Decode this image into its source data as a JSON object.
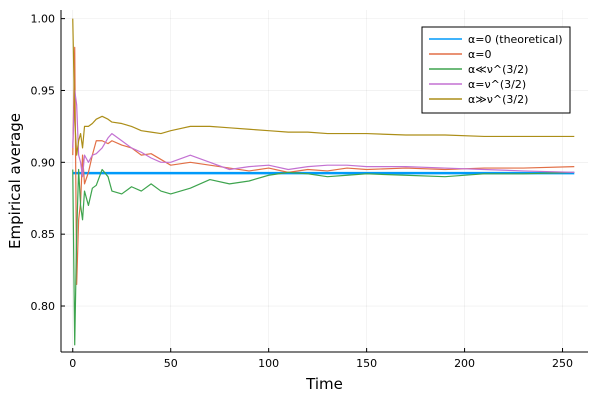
{
  "chart_data": {
    "type": "line",
    "title": "",
    "xlabel": "Time",
    "ylabel": "Empirical average",
    "xlim": [
      -6,
      263
    ],
    "ylim": [
      0.768,
      1.006
    ],
    "x_ticks": [
      0,
      50,
      100,
      150,
      200,
      250
    ],
    "x_tick_labels": [
      "0",
      "50",
      "100",
      "150",
      "200",
      "250"
    ],
    "y_ticks": [
      0.8,
      0.85,
      0.9,
      0.95,
      1.0
    ],
    "y_tick_labels": [
      "0.80",
      "0.85",
      "0.90",
      "0.95",
      "1.00"
    ],
    "grid": true,
    "legend_position": "top-right",
    "series": [
      {
        "name": "α=0 (theoretical)",
        "color": "#009AFA",
        "line_width": 2.5,
        "x": [
          0,
          256
        ],
        "y": [
          0.8925,
          0.8925
        ]
      },
      {
        "name": "α=0",
        "color": "#E26F46",
        "x": [
          0,
          1,
          2,
          3,
          4,
          5,
          6,
          8,
          10,
          12,
          15,
          18,
          20,
          25,
          30,
          35,
          40,
          45,
          50,
          60,
          70,
          80,
          90,
          100,
          110,
          120,
          130,
          140,
          150,
          170,
          190,
          210,
          230,
          256
        ],
        "y": [
          0.905,
          0.98,
          0.815,
          0.86,
          0.872,
          0.905,
          0.885,
          0.893,
          0.905,
          0.915,
          0.915,
          0.913,
          0.915,
          0.912,
          0.91,
          0.905,
          0.906,
          0.902,
          0.898,
          0.9,
          0.898,
          0.896,
          0.894,
          0.896,
          0.893,
          0.895,
          0.894,
          0.896,
          0.895,
          0.896,
          0.895,
          0.896,
          0.896,
          0.897
        ]
      },
      {
        "name": "α≪ν^(3/2)",
        "color": "#3EA44E",
        "x": [
          0,
          1,
          2,
          3,
          4,
          5,
          6,
          8,
          10,
          12,
          15,
          18,
          20,
          25,
          30,
          35,
          40,
          45,
          50,
          60,
          70,
          80,
          90,
          100,
          110,
          120,
          130,
          140,
          150,
          170,
          190,
          210,
          230,
          256
        ],
        "y": [
          0.895,
          0.773,
          0.85,
          0.895,
          0.87,
          0.86,
          0.88,
          0.87,
          0.882,
          0.884,
          0.895,
          0.89,
          0.88,
          0.878,
          0.883,
          0.88,
          0.885,
          0.88,
          0.878,
          0.882,
          0.888,
          0.885,
          0.887,
          0.891,
          0.893,
          0.892,
          0.89,
          0.891,
          0.892,
          0.891,
          0.89,
          0.892,
          0.892,
          0.893
        ]
      },
      {
        "name": "α=ν^(3/2)",
        "color": "#C371D2",
        "x": [
          0,
          1,
          2,
          3,
          4,
          5,
          6,
          8,
          10,
          12,
          15,
          18,
          20,
          25,
          30,
          35,
          40,
          45,
          50,
          60,
          70,
          80,
          90,
          100,
          110,
          120,
          130,
          140,
          150,
          170,
          190,
          210,
          230,
          256
        ],
        "y": [
          0.91,
          0.95,
          0.94,
          0.905,
          0.9,
          0.89,
          0.905,
          0.9,
          0.905,
          0.906,
          0.91,
          0.917,
          0.92,
          0.915,
          0.91,
          0.907,
          0.903,
          0.9,
          0.9,
          0.905,
          0.9,
          0.895,
          0.897,
          0.898,
          0.895,
          0.897,
          0.898,
          0.898,
          0.897,
          0.897,
          0.896,
          0.895,
          0.894,
          0.893
        ]
      },
      {
        "name": "α≫ν^(3/2)",
        "color": "#AC8E18",
        "x": [
          0,
          1,
          2,
          3,
          4,
          5,
          6,
          8,
          10,
          12,
          15,
          18,
          20,
          25,
          30,
          35,
          40,
          45,
          50,
          60,
          70,
          80,
          90,
          100,
          110,
          120,
          130,
          140,
          150,
          170,
          190,
          210,
          230,
          256
        ],
        "y": [
          1.0,
          0.93,
          0.905,
          0.915,
          0.92,
          0.91,
          0.925,
          0.925,
          0.927,
          0.93,
          0.932,
          0.93,
          0.928,
          0.927,
          0.925,
          0.922,
          0.921,
          0.92,
          0.922,
          0.925,
          0.925,
          0.924,
          0.923,
          0.922,
          0.921,
          0.921,
          0.92,
          0.92,
          0.92,
          0.919,
          0.919,
          0.918,
          0.918,
          0.918
        ]
      }
    ]
  }
}
